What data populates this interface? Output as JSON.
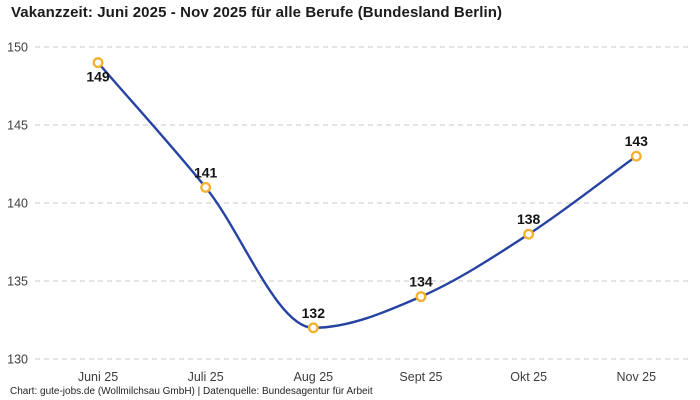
{
  "chart_data": {
    "type": "line",
    "title": "Vakanzzeit: Juni 2025 - Nov 2025 für alle Berufe (Bundesland Berlin)",
    "footer": "Chart: gute-jobs.de (Wollmilchsau GmbH) | Datenquelle: Bundesagentur für Arbeit",
    "categories": [
      "Juni 25",
      "Juli 25",
      "Aug 25",
      "Sept 25",
      "Okt 25",
      "Nov 25"
    ],
    "values": [
      149,
      141,
      132,
      134,
      138,
      143
    ],
    "data_labels": [
      149,
      141,
      132,
      134,
      138,
      143
    ],
    "xlabel": "",
    "ylabel": "",
    "ylim": [
      130,
      150
    ],
    "yticks": [
      130,
      135,
      140,
      145,
      150
    ],
    "grid": "horizontal-dashed",
    "legend": "none",
    "colors": {
      "line": "#2643a3",
      "marker_ring": "#f2b02c",
      "marker_fill": "#ffffff",
      "grid_line": "#c9c9c9",
      "tick_text": "#3d3d3d",
      "label_text": "#141414",
      "title_text": "#1b1b1b"
    }
  }
}
